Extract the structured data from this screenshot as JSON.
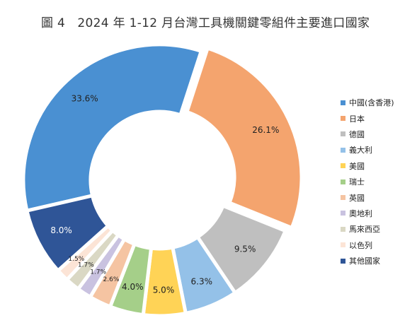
{
  "chart_data": {
    "type": "pie",
    "title": "圖 4　2024 年 1-12 月台灣工具機關鍵零組件主要進口國家",
    "series": [
      {
        "name": "中國(含香港)",
        "value": 33.6,
        "label": "33.6%",
        "color": "#4A90D2"
      },
      {
        "name": "日本",
        "value": 26.1,
        "label": "26.1%",
        "color": "#F4A46E"
      },
      {
        "name": "德國",
        "value": 9.5,
        "label": "9.5%",
        "color": "#BFBFBF"
      },
      {
        "name": "義大利",
        "value": 6.3,
        "label": "6.3%",
        "color": "#94C1E8"
      },
      {
        "name": "美國",
        "value": 5.0,
        "label": "5.0%",
        "color": "#FFD356"
      },
      {
        "name": "瑞士",
        "value": 4.0,
        "label": "4.0%",
        "color": "#A5CF89"
      },
      {
        "name": "英國",
        "value": 2.6,
        "label": "2.6%",
        "color": "#F5C4A2"
      },
      {
        "name": "奧地利",
        "value": 1.7,
        "label": "1.7%",
        "color": "#C9C2E0"
      },
      {
        "name": "馬來西亞",
        "value": 1.7,
        "label": "1.7%",
        "color": "#DAD8C4"
      },
      {
        "name": "以色列",
        "value": 1.5,
        "label": "1.5%",
        "color": "#FCE4D6"
      },
      {
        "name": "其他國家",
        "value": 8.0,
        "label": "8.0%",
        "color": "#2F5597"
      }
    ],
    "legend_position": "right"
  }
}
